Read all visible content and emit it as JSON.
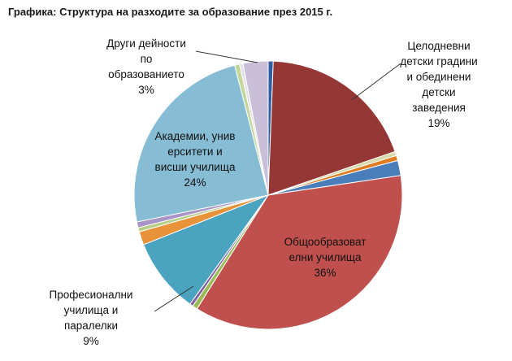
{
  "title": "Графика: Структура на разходите за образование през 2015 г.",
  "chart_data": {
    "type": "pie",
    "title": "Графика: Структура на разходите за образование през 2015 г.",
    "legend": "none",
    "slices": [
      {
        "value": 0.6,
        "color": "#2e5fa3"
      },
      {
        "value": 19,
        "color": "#953735",
        "label_lines": [
          "Целодневни",
          "детски градини",
          "и обединени",
          "детски",
          "заведения"
        ],
        "label_pct": "19%"
      },
      {
        "value": 0.5,
        "color": "#d8d8a8"
      },
      {
        "value": 0.6,
        "color": "#e07b1f"
      },
      {
        "value": 1.8,
        "color": "#4a7ebb"
      },
      {
        "value": 36,
        "color": "#c0504d",
        "label_lines": [
          "Общообразоват",
          "елни училища"
        ],
        "label_pct": "36%"
      },
      {
        "value": 0.6,
        "color": "#9bbb59"
      },
      {
        "value": 0.4,
        "color": "#7f60a0"
      },
      {
        "value": 9,
        "color": "#4aa3bf",
        "label_lines": [
          "Професионални",
          "училища и",
          "паралелки"
        ],
        "label_pct": "9%"
      },
      {
        "value": 1.6,
        "color": "#e8923a"
      },
      {
        "value": 0.5,
        "color": "#b8cf8a"
      },
      {
        "value": 0.7,
        "color": "#a994c7"
      },
      {
        "value": 24,
        "color": "#86bdd4",
        "label_lines": [
          "Академии, унив",
          "ерситети и",
          "висши училища"
        ],
        "label_pct": "24%"
      },
      {
        "value": 0.6,
        "color": "#c4d79b"
      },
      {
        "value": 0.4,
        "color": "#e6e0ec"
      },
      {
        "value": 3,
        "color": "#c9bfd9",
        "label_lines": [
          "Други дейности",
          "по",
          "образованието"
        ],
        "label_pct": "3%"
      }
    ]
  }
}
